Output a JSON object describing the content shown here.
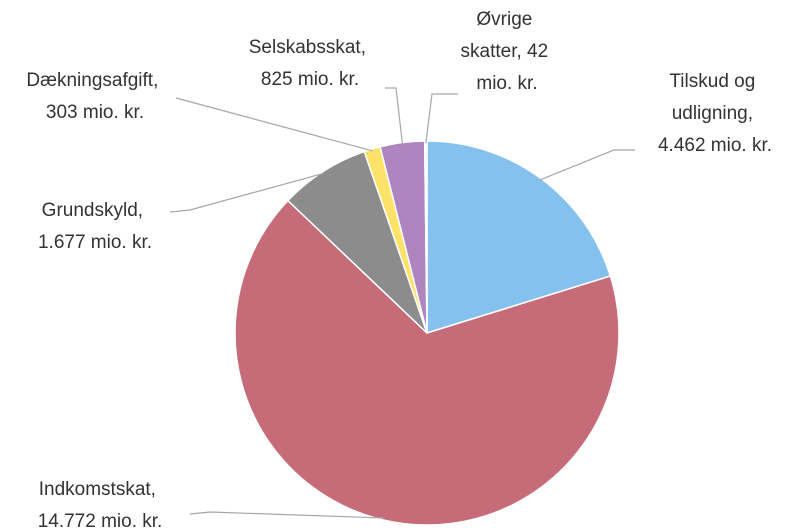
{
  "chart_data": {
    "type": "pie",
    "values": [
      4462,
      14772,
      1677,
      303,
      825,
      42
    ],
    "value_labels": [
      "Tilskud og udligning, 4.462 mio. kr.",
      "Indkomstskat, 14.772 mio. kr.",
      "Grundskyld, 1.677 mio. kr.",
      "Dækningsafgift, 303 mio. kr.",
      "Selskabsskat, 825 mio. kr.",
      "Øvrige skatter, 42 mio. kr."
    ],
    "colors": [
      "#85c1ee",
      "#c66b78",
      "#8c8c8c",
      "#fde26a",
      "#ae85bf",
      "#e8e8e8"
    ]
  }
}
